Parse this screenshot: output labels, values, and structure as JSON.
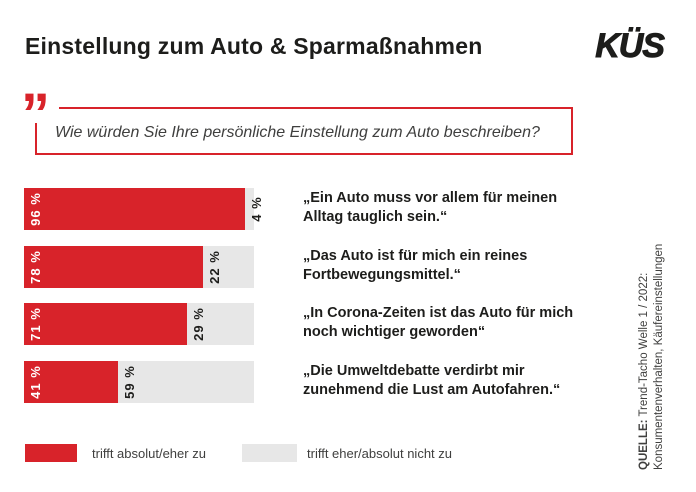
{
  "header": {
    "title": "Einstellung zum Auto & Sparmaßnahmen",
    "logo": "KÜS"
  },
  "icons": {
    "quote": "”"
  },
  "question": {
    "text": "Wie würden Sie Ihre persönliche Einstellung zum Auto beschreiben?"
  },
  "colors": {
    "brand_red": "#d8232a",
    "bar_gray": "#e7e7e7",
    "text_dark": "#1d1d1b",
    "text_gray": "#3f3f3e"
  },
  "chart_data": {
    "type": "bar",
    "orientation": "horizontal-stacked",
    "value_suffix": " %",
    "xlim": [
      0,
      100
    ],
    "legend_position": "bottom",
    "categories": [
      "„Ein Auto muss vor allem für meinen Alltag tauglich sein.“",
      "„Das Auto ist für mich ein reines Fortbewegungsmittel.“",
      "„In Corona-Zeiten ist das Auto für mich noch wichtiger geworden“",
      "„Die Umweltdebatte verdirbt mir zunehmend die Lust am Autofahren.“"
    ],
    "series": [
      {
        "name": "trifft absolut/eher zu",
        "color": "#d8232a",
        "values": [
          96,
          78,
          71,
          41
        ]
      },
      {
        "name": "trifft eher/absolut nicht zu",
        "color": "#e7e7e7",
        "values": [
          4,
          22,
          29,
          59
        ]
      }
    ],
    "rows": [
      {
        "agree_pct": 96,
        "disagree_pct": 4,
        "agree_label": "96 %",
        "disagree_label": "4 %",
        "statement_line1": "„Ein Auto muss vor allem für meinen",
        "statement_line2": "Alltag tauglich sein.“"
      },
      {
        "agree_pct": 78,
        "disagree_pct": 22,
        "agree_label": "78 %",
        "disagree_label": "22 %",
        "statement_line1": "„Das Auto ist für mich ein reines",
        "statement_line2": "Fortbewegungsmittel.“"
      },
      {
        "agree_pct": 71,
        "disagree_pct": 29,
        "agree_label": "71 %",
        "disagree_label": "29 %",
        "statement_line1": "„In Corona-Zeiten ist das Auto für mich",
        "statement_line2": "noch wichtiger geworden“"
      },
      {
        "agree_pct": 41,
        "disagree_pct": 59,
        "agree_label": "41 %",
        "disagree_label": "59 %",
        "statement_line1": "„Die Umweltdebatte verdirbt mir",
        "statement_line2": "zunehmend die Lust am Autofahren.“"
      }
    ]
  },
  "legend": [
    {
      "label": "trifft absolut/eher zu",
      "swatch": "red"
    },
    {
      "label": "trifft eher/absolut nicht zu",
      "swatch": "gray"
    }
  ],
  "source": {
    "label": "QUELLE:",
    "line1_rest": " Trend-Tacho Welle 1 / 2022:",
    "line2": "Konsumentenverhalten, Käufereinstellungen"
  }
}
